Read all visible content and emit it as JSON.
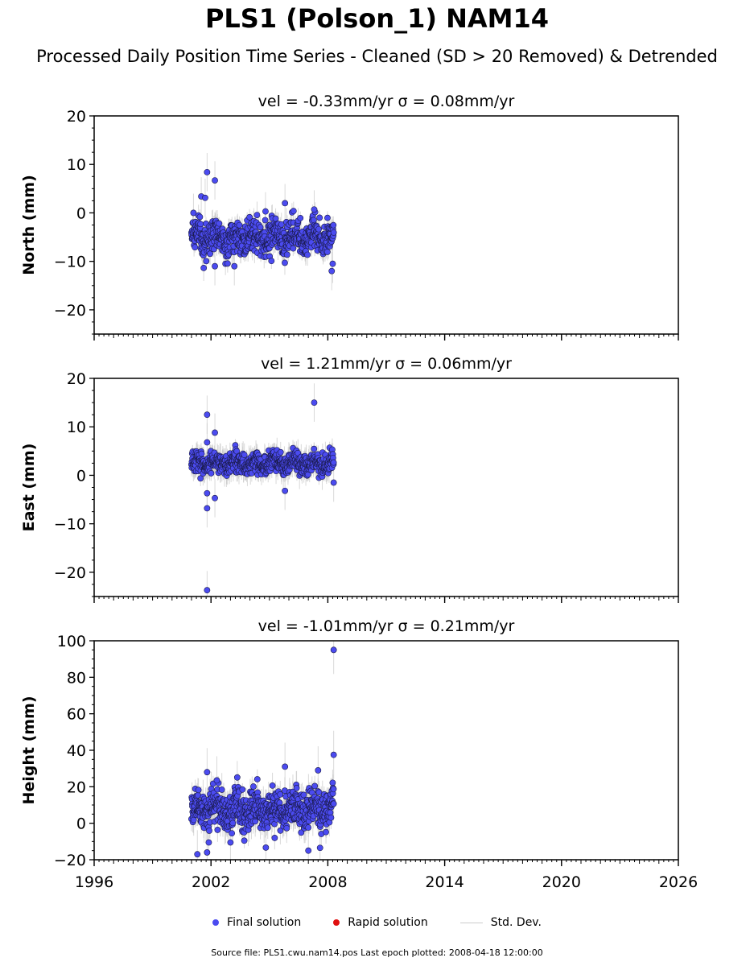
{
  "page": {
    "title": "PLS1 (Polson_1) NAM14",
    "subtitle": "Processed Daily Position Time Series - Cleaned (SD > 20 Removed) & Detrended",
    "footer": "Source file: PLS1.cwu.nam14.pos  Last epoch plotted: 2008-04-18 12:00:00"
  },
  "legend": {
    "final": "Final solution",
    "rapid": "Rapid solution",
    "stddev": "Std. Dev."
  },
  "colors": {
    "final": "#4b4bf0",
    "rapid": "#e01010",
    "stddev": "#cccccc",
    "marker_edge": "#1a1a4a"
  },
  "chart_data": [
    {
      "type": "scatter",
      "title": "vel = -0.33mm/yr   σ = 0.08mm/yr",
      "ylabel": "North (mm)",
      "xlim": [
        1996,
        2026
      ],
      "ylim": [
        -25,
        20
      ],
      "yticks": [
        -20,
        -10,
        0,
        10,
        20
      ],
      "xticks": [
        1996,
        2002,
        2008,
        2014,
        2020,
        2026
      ],
      "show_xticklabels": false,
      "series": [
        {
          "name": "Final solution",
          "data_span": [
            2001.0,
            2008.3
          ],
          "typical": {
            "base": -5.0,
            "scatter": 2.2,
            "sd": 1.8
          },
          "outliers": [
            {
              "x": 2001.8,
              "y": 8.4
            },
            {
              "x": 2002.2,
              "y": 6.7
            },
            {
              "x": 2001.5,
              "y": 3.4
            },
            {
              "x": 2001.7,
              "y": 3.1
            },
            {
              "x": 2005.8,
              "y": 2.0
            },
            {
              "x": 2004.8,
              "y": 0.3
            },
            {
              "x": 2007.3,
              "y": 0.7
            },
            {
              "x": 2001.1,
              "y": 0.0
            },
            {
              "x": 2002.2,
              "y": -11.0
            },
            {
              "x": 2003.2,
              "y": -11.0
            },
            {
              "x": 2008.2,
              "y": -12.0
            },
            {
              "x": 2008.25,
              "y": -10.5
            }
          ]
        }
      ]
    },
    {
      "type": "scatter",
      "title": "vel = 1.21mm/yr   σ = 0.06mm/yr",
      "ylabel": "East (mm)",
      "xlim": [
        1996,
        2026
      ],
      "ylim": [
        -25,
        20
      ],
      "yticks": [
        -20,
        -10,
        0,
        10,
        20
      ],
      "xticks": [
        1996,
        2002,
        2008,
        2014,
        2020,
        2026
      ],
      "show_xticklabels": false,
      "series": [
        {
          "name": "Final solution",
          "data_span": [
            2001.0,
            2008.3
          ],
          "typical": {
            "base": 2.5,
            "scatter": 1.4,
            "sd": 1.8
          },
          "outliers": [
            {
              "x": 2001.8,
              "y": 12.5
            },
            {
              "x": 2002.2,
              "y": 8.8
            },
            {
              "x": 2007.3,
              "y": 15.0
            },
            {
              "x": 2001.8,
              "y": 6.8
            },
            {
              "x": 2001.8,
              "y": -3.7
            },
            {
              "x": 2001.8,
              "y": -6.8
            },
            {
              "x": 2002.2,
              "y": -4.7
            },
            {
              "x": 2001.8,
              "y": -23.7
            },
            {
              "x": 2005.8,
              "y": -3.2
            },
            {
              "x": 2008.3,
              "y": -1.5
            }
          ]
        }
      ]
    },
    {
      "type": "scatter",
      "title": "vel = -1.01mm/yr   σ = 0.21mm/yr",
      "ylabel": "Height (mm)",
      "xlim": [
        1996,
        2026
      ],
      "ylim": [
        -20,
        100
      ],
      "yticks": [
        -20,
        0,
        20,
        40,
        60,
        80,
        100
      ],
      "xticks": [
        1996,
        2002,
        2008,
        2014,
        2020,
        2026
      ],
      "xticklabels": [
        "1996",
        "2002",
        "2008",
        "2014",
        "2020",
        "2026"
      ],
      "show_xticklabels": true,
      "series": [
        {
          "name": "Final solution",
          "data_span": [
            2001.0,
            2008.3
          ],
          "typical": {
            "base": 7.0,
            "scatter": 7.0,
            "sd": 6.0
          },
          "outliers": [
            {
              "x": 2008.3,
              "y": 95.0
            },
            {
              "x": 2008.3,
              "y": 37.5
            },
            {
              "x": 2005.8,
              "y": 31.0
            },
            {
              "x": 2007.5,
              "y": 29.0
            },
            {
              "x": 2001.8,
              "y": 28.0
            },
            {
              "x": 2002.3,
              "y": 23.5
            },
            {
              "x": 2001.3,
              "y": -17.0
            },
            {
              "x": 2001.8,
              "y": -16.0
            },
            {
              "x": 2003.0,
              "y": -10.5
            },
            {
              "x": 2007.0,
              "y": -15.0
            },
            {
              "x": 2007.6,
              "y": -13.5
            }
          ]
        }
      ]
    }
  ]
}
